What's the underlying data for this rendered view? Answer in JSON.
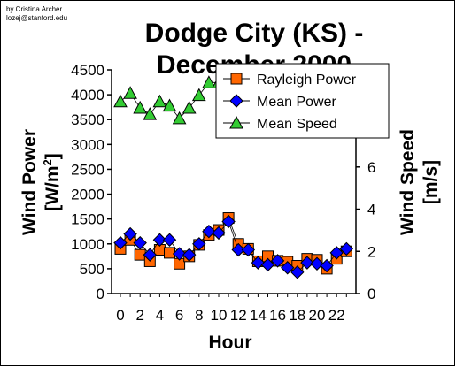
{
  "credit": {
    "line1": "by Cristina Archer",
    "line2": "lozej@stanford.edu"
  },
  "chart_data": {
    "type": "scatter",
    "title": "Dodge City (KS) - December 2000",
    "xlabel": "Hour",
    "ylabel_left": "Wind Power [W/m2]",
    "ylabel_left_main": "Wind Power",
    "ylabel_left_unit_base": "[W/m",
    "ylabel_left_unit_sup": "2",
    "ylabel_left_unit_end": "]",
    "ylabel_right": "Wind Speed [m/s]",
    "ylabel_right_main": "Wind Speed",
    "ylabel_right_unit": "[m/s]",
    "x": [
      0,
      1,
      2,
      3,
      4,
      5,
      6,
      7,
      8,
      9,
      10,
      11,
      12,
      13,
      14,
      15,
      16,
      17,
      18,
      19,
      20,
      21,
      22,
      23
    ],
    "x_ticks": [
      0,
      2,
      4,
      6,
      8,
      10,
      12,
      14,
      16,
      18,
      20,
      22
    ],
    "x_tick_labels": [
      "0",
      "2",
      "4",
      "6",
      "8",
      "10",
      "12",
      "14",
      "16",
      "18",
      "20",
      "22"
    ],
    "ylim_left": [
      0,
      4500
    ],
    "y_ticks_left": [
      0,
      500,
      1000,
      1500,
      2000,
      2500,
      3000,
      3500,
      4000,
      4500
    ],
    "y_tick_labels_left": [
      "0",
      "500",
      "1000",
      "1500",
      "2000",
      "2500",
      "3000",
      "3500",
      "4000",
      "4500"
    ],
    "ylim_right": [
      0,
      10.6
    ],
    "y_ticks_right": [
      0,
      2,
      4,
      6,
      8,
      10
    ],
    "y_tick_labels_right": [
      "0",
      "2",
      "4",
      "6",
      "8",
      "10"
    ],
    "grid": false,
    "legend_position": "top-right",
    "series": [
      {
        "name": "Rayleigh Power",
        "axis": "left",
        "marker": "square",
        "color": "#ff6600",
        "stroke": "#000000",
        "values": [
          900,
          1080,
          780,
          650,
          880,
          820,
          600,
          750,
          980,
          1180,
          1280,
          1520,
          1000,
          900,
          650,
          750,
          660,
          640,
          560,
          700,
          680,
          500,
          700,
          850
        ]
      },
      {
        "name": "Mean Power",
        "axis": "left",
        "marker": "diamond",
        "color": "#0000ff",
        "stroke": "#000000",
        "values": [
          1020,
          1200,
          1020,
          780,
          1080,
          1080,
          800,
          780,
          1000,
          1250,
          1220,
          1450,
          880,
          880,
          620,
          580,
          660,
          520,
          430,
          620,
          600,
          560,
          820,
          900
        ]
      },
      {
        "name": "Mean Speed",
        "axis": "right",
        "marker": "triangle",
        "color": "#33cc33",
        "stroke": "#000000",
        "values": [
          9.1,
          9.5,
          8.8,
          8.5,
          9.1,
          8.9,
          8.3,
          8.8,
          9.4,
          10.0,
          10.0,
          10.6,
          9.3,
          8.9,
          8.3,
          8.6,
          8.4,
          8.4,
          7.9,
          8.4,
          8.2,
          7.7,
          8.8,
          9.1
        ]
      }
    ]
  }
}
